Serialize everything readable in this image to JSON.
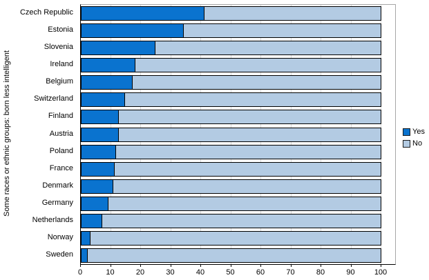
{
  "chart": {
    "y_axis_title": "Some races or ethnic groups: born less intelligent",
    "colors": {
      "yes": "#0A73CF",
      "no": "#B3CBE3",
      "bar_border": "#000000",
      "gridline": "#D9D9D9",
      "axis": "#000000"
    },
    "legend": {
      "items": [
        {
          "label": "Yes",
          "color": "#0A73CF"
        },
        {
          "label": "No",
          "color": "#B3CBE3"
        }
      ]
    }
  },
  "chart_data": {
    "type": "bar",
    "orientation": "horizontal",
    "stacked": true,
    "title": "",
    "xlabel": "",
    "ylabel": "Some races or ethnic groups: born less intelligent",
    "categories": [
      "Czech Republic",
      "Estonia",
      "Slovenia",
      "Ireland",
      "Belgium",
      "Switzerland",
      "Finland",
      "Austria",
      "Poland",
      "France",
      "Denmark",
      "Germany",
      "Netherlands",
      "Norway",
      "Sweden"
    ],
    "series": [
      {
        "name": "Yes",
        "color": "#0A73CF",
        "values": [
          41,
          34,
          24.5,
          18,
          17,
          14.5,
          12.5,
          12.5,
          11.5,
          11,
          10.5,
          9,
          7,
          3,
          2
        ]
      },
      {
        "name": "No",
        "color": "#B3CBE3",
        "values": [
          59,
          66,
          75.5,
          82,
          83,
          85.5,
          87.5,
          87.5,
          88.5,
          89,
          89.5,
          91,
          93,
          97,
          98
        ]
      }
    ],
    "xlim": [
      0,
      104.6
    ],
    "x_ticks": [
      0,
      10,
      20,
      30,
      40,
      50,
      60,
      70,
      80,
      90,
      100
    ],
    "grid": "vertical",
    "legend_position": "right-center"
  }
}
